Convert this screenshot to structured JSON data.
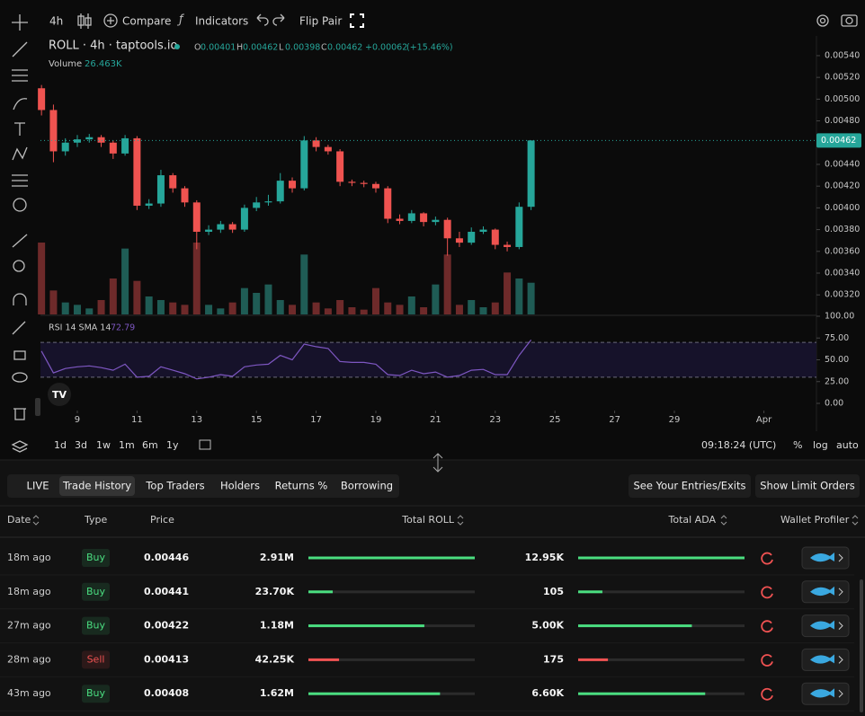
{
  "toolbar": {
    "interval": "4h",
    "compare": "Compare",
    "indicators": "Indicators",
    "flip": "Flip Pair"
  },
  "chart_data": [
    {
      "type": "candlestick",
      "legend": {
        "symbol": "ROLL · 4h · taptools.io",
        "ohlc": [
          {
            "key": "O",
            "value": 0.00401
          },
          {
            "key": "H",
            "value": 0.00462
          },
          {
            "key": "L",
            "value": 0.00398
          },
          {
            "key": "C",
            "value": 0.00462
          }
        ],
        "change": {
          "value": 0.00062,
          "label": "+0.00062"
        },
        "change_pct": {
          "value": 15.46,
          "label": "(+15.46%)"
        },
        "volume_name": "Volume",
        "volume": {
          "value": 26.463,
          "label": "26.463K"
        }
      },
      "x": [
        7.8,
        8.2,
        8.6,
        9.0,
        9.4,
        9.8,
        10.2,
        10.6,
        11.0,
        11.4,
        11.8,
        12.2,
        12.6,
        13.0,
        13.4,
        13.8,
        14.2,
        14.6,
        15.0,
        15.4,
        15.8,
        16.2,
        16.6,
        17.0,
        17.4,
        17.8,
        18.2,
        18.6,
        19.0,
        19.4,
        19.8,
        20.2,
        20.6,
        21.0,
        21.4,
        21.8,
        22.2,
        22.6,
        23.0,
        23.4,
        23.8,
        24.2
      ],
      "open": [
        0.0051,
        0.0049,
        0.00452,
        0.0046,
        0.00463,
        0.00465,
        0.0046,
        0.0045,
        0.00464,
        0.00402,
        0.00404,
        0.0043,
        0.00418,
        0.00405,
        0.00378,
        0.0038,
        0.00385,
        0.0038,
        0.004,
        0.00405,
        0.00406,
        0.00425,
        0.00418,
        0.00462,
        0.00456,
        0.00452,
        0.00424,
        0.00423,
        0.00422,
        0.00418,
        0.0039,
        0.00388,
        0.00395,
        0.00387,
        0.00389,
        0.00372,
        0.00368,
        0.00378,
        0.0038,
        0.00366,
        0.00364,
        0.00401
      ],
      "high": [
        0.00513,
        0.00495,
        0.00464,
        0.00467,
        0.00468,
        0.00467,
        0.00462,
        0.00467,
        0.00466,
        0.00408,
        0.00435,
        0.00432,
        0.0042,
        0.00407,
        0.00384,
        0.00388,
        0.00387,
        0.00403,
        0.0041,
        0.00412,
        0.00432,
        0.00428,
        0.00466,
        0.00465,
        0.00458,
        0.00454,
        0.00426,
        0.00425,
        0.00424,
        0.0042,
        0.00394,
        0.00398,
        0.00396,
        0.00392,
        0.00391,
        0.00378,
        0.00382,
        0.00383,
        0.00381,
        0.00369,
        0.00405,
        0.00462
      ],
      "low": [
        0.00485,
        0.00442,
        0.00448,
        0.00456,
        0.0046,
        0.00456,
        0.00445,
        0.00448,
        0.00398,
        0.00399,
        0.00401,
        0.00414,
        0.00401,
        0.00362,
        0.00375,
        0.00377,
        0.00377,
        0.00378,
        0.00397,
        0.00402,
        0.00404,
        0.00414,
        0.00416,
        0.00452,
        0.00449,
        0.0042,
        0.0042,
        0.00419,
        0.00414,
        0.00386,
        0.00385,
        0.00386,
        0.00383,
        0.00384,
        0.00356,
        0.00364,
        0.00366,
        0.00376,
        0.00362,
        0.0036,
        0.00362,
        0.00398
      ],
      "close": [
        0.0049,
        0.00452,
        0.0046,
        0.00463,
        0.00465,
        0.0046,
        0.0045,
        0.00464,
        0.00402,
        0.00404,
        0.0043,
        0.00418,
        0.00405,
        0.00378,
        0.0038,
        0.00385,
        0.0038,
        0.004,
        0.00405,
        0.00406,
        0.00425,
        0.00418,
        0.00462,
        0.00456,
        0.00452,
        0.00424,
        0.00423,
        0.00422,
        0.00418,
        0.0039,
        0.00388,
        0.00395,
        0.00387,
        0.00389,
        0.00372,
        0.00368,
        0.00378,
        0.0038,
        0.00366,
        0.00364,
        0.00401,
        0.00462
      ],
      "volume": [
        60,
        20,
        10,
        8,
        5,
        12,
        30,
        55,
        28,
        15,
        12,
        10,
        8,
        60,
        8,
        5,
        10,
        22,
        18,
        25,
        12,
        8,
        50,
        10,
        5,
        12,
        6,
        4,
        22,
        10,
        8,
        15,
        6,
        25,
        50,
        8,
        12,
        6,
        10,
        35,
        30,
        26.463
      ],
      "xlim": [
        6.41,
        33.76
      ],
      "xticks": [
        9,
        11,
        13,
        15,
        17,
        19,
        21,
        23,
        25,
        27,
        29,
        {
          "value": 32,
          "label": "Apr"
        }
      ],
      "ylim": [
        0.00302,
        0.00554
      ],
      "yticks": [
        {
          "value": 0.0032,
          "label": "0.00320"
        },
        {
          "value": 0.0034,
          "label": "0.00340"
        },
        {
          "value": 0.0036,
          "label": "0.00360"
        },
        {
          "value": 0.0038,
          "label": "0.00380"
        },
        {
          "value": 0.004,
          "label": "0.00400"
        },
        {
          "value": 0.0042,
          "label": "0.00420"
        },
        {
          "value": 0.0044,
          "label": "0.00440"
        },
        {
          "value": 0.0046,
          "label": "0.00460"
        },
        {
          "value": 0.0048,
          "label": "0.00480"
        },
        {
          "value": 0.005,
          "label": "0.00500"
        },
        {
          "value": 0.0052,
          "label": "0.00520"
        },
        {
          "value": 0.0054,
          "label": "0.00540"
        }
      ],
      "up_color": "#26a69a",
      "down_color": "#ef5350"
    },
    {
      "type": "line",
      "title": "RSI 14 SMA 14",
      "color": "#7e57c2",
      "values": [
        60,
        35,
        40,
        42,
        43,
        41,
        38,
        45,
        30,
        31,
        42,
        38,
        34,
        28,
        30,
        33,
        31,
        42,
        44,
        45,
        55,
        50,
        68,
        65,
        63,
        48,
        47,
        47,
        45,
        33,
        32,
        38,
        34,
        36,
        30,
        32,
        38,
        39,
        33,
        33,
        55,
        72.79
      ],
      "ylim": [
        0,
        100
      ],
      "yticks": [
        {
          "value": 100,
          "label": "100.00"
        },
        {
          "value": 75,
          "label": "75.00"
        },
        {
          "value": 50,
          "label": "50.00"
        },
        {
          "value": 25,
          "label": "25.00"
        },
        {
          "value": 0,
          "label": "0.00"
        }
      ],
      "bands": [
        30,
        70
      ]
    }
  ],
  "bottom_bar": {
    "ranges": [
      "1d",
      "3d",
      "1w",
      "1m",
      "6m",
      "1y"
    ],
    "time": "09:18:24 (UTC)",
    "percent": "%",
    "log": "log",
    "auto": "auto"
  },
  "table": {
    "tabs": [
      "LIVE",
      "Trade History",
      "Top Traders",
      "Holders",
      "Returns %",
      "Borrowing"
    ],
    "active_tab": 1,
    "buttons": [
      "See Your Entries/Exits",
      "Show Limit Orders"
    ],
    "columns": [
      "Date",
      "Type",
      "Price",
      "Total ROLL",
      "Total ADA",
      "Wallet Profiler"
    ],
    "rows": [
      {
        "date": "18m ago",
        "type": "Buy",
        "color": "#4ade80",
        "price": "0.00446",
        "roll": {
          "value": 2910000,
          "label": "2.91M"
        },
        "ada": {
          "value": 12950,
          "label": "12.95K"
        }
      },
      {
        "date": "18m ago",
        "type": "Buy",
        "color": "#4ade80",
        "price": "0.00441",
        "roll": {
          "value": 23700,
          "label": "23.70K"
        },
        "ada": {
          "value": 105,
          "label": "105"
        }
      },
      {
        "date": "27m ago",
        "type": "Buy",
        "color": "#4ade80",
        "price": "0.00422",
        "roll": {
          "value": 1180000,
          "label": "1.18M"
        },
        "ada": {
          "value": 5000,
          "label": "5.00K"
        }
      },
      {
        "date": "28m ago",
        "type": "Sell",
        "color": "#f05252",
        "price": "0.00413",
        "roll": {
          "value": 42250,
          "label": "42.25K"
        },
        "ada": {
          "value": 175,
          "label": "175"
        }
      },
      {
        "date": "43m ago",
        "type": "Buy",
        "color": "#4ade80",
        "price": "0.00408",
        "roll": {
          "value": 1620000,
          "label": "1.62M"
        },
        "ada": {
          "value": 6600,
          "label": "6.60K"
        }
      }
    ]
  }
}
